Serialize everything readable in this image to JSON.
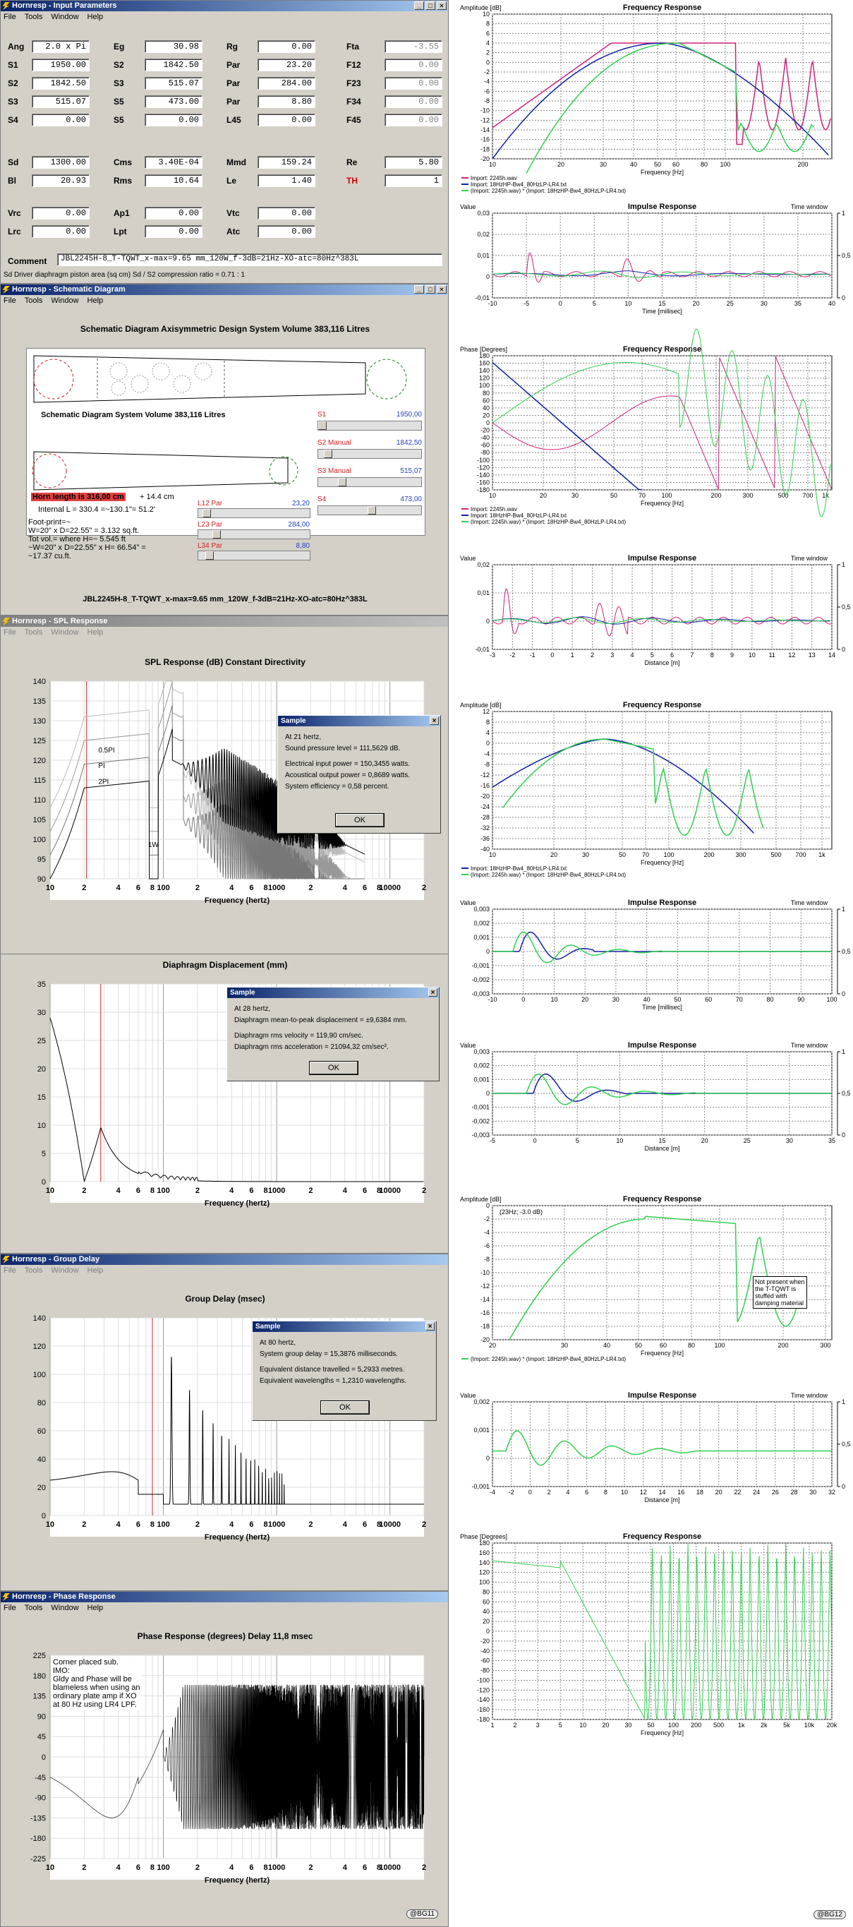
{
  "input_params": {
    "title": "Hornresp - Input Parameters",
    "menu": [
      "File",
      "Tools",
      "Window",
      "Help"
    ],
    "rows": [
      [
        {
          "l": "Ang",
          "v": "2.0 x Pi"
        },
        {
          "l": "Eg",
          "v": "30.98"
        },
        {
          "l": "Rg",
          "v": "0.00"
        },
        {
          "l": "Fta",
          "v": "-3.55",
          "dis": true
        }
      ],
      [
        {
          "l": "S1",
          "v": "1950.00"
        },
        {
          "l": "S2",
          "v": "1842.50"
        },
        {
          "l": "Par",
          "v": "23.20"
        },
        {
          "l": "F12",
          "v": "0.00",
          "dis": true
        }
      ],
      [
        {
          "l": "S2",
          "v": "1842.50"
        },
        {
          "l": "S3",
          "v": "515.07"
        },
        {
          "l": "Par",
          "v": "284.00"
        },
        {
          "l": "F23",
          "v": "0.00",
          "dis": true
        }
      ],
      [
        {
          "l": "S3",
          "v": "515.07"
        },
        {
          "l": "S5",
          "v": "473.00"
        },
        {
          "l": "Par",
          "v": "8.80"
        },
        {
          "l": "F34",
          "v": "0.00",
          "dis": true
        }
      ],
      [
        {
          "l": "S4",
          "v": "0.00"
        },
        {
          "l": "S5",
          "v": "0.00"
        },
        {
          "l": "L45",
          "v": "0.00"
        },
        {
          "l": "F45",
          "v": "0.00",
          "dis": true
        }
      ],
      [
        {
          "l": "Sd",
          "v": "1300.00"
        },
        {
          "l": "Cms",
          "v": "3.40E-04"
        },
        {
          "l": "Mmd",
          "v": "159.24"
        },
        {
          "l": "Re",
          "v": "5.80"
        }
      ],
      [
        {
          "l": "Bl",
          "v": "20.93"
        },
        {
          "l": "Rms",
          "v": "10.64"
        },
        {
          "l": "Le",
          "v": "1.40"
        },
        {
          "l": "TH",
          "v": "1",
          "red": true
        }
      ],
      [
        {
          "l": "Vrc",
          "v": "0.00"
        },
        {
          "l": "Ap1",
          "v": "0.00"
        },
        {
          "l": "Vtc",
          "v": "0.00"
        }
      ],
      [
        {
          "l": "Lrc",
          "v": "0.00"
        },
        {
          "l": "Lpt",
          "v": "0.00"
        },
        {
          "l": "Atc",
          "v": "0.00"
        }
      ]
    ],
    "comment_label": "Comment",
    "comment": "JBL2245H-8_T-TQWT_x-max=9.65 mm_120W_f-3dB=21Hz-XO-atc=80Hz^383L",
    "status": "Sd  Driver diaphragm piston area (sq cm)   Sd / S2 compression ratio = 0.71 : 1"
  },
  "schematic": {
    "title": "Hornresp - Schematic Diagram",
    "menu": [
      "File",
      "Tools",
      "Window",
      "Help"
    ],
    "heading": "Schematic Diagram   Axisymmetric Design   System Volume 383,116 Litres",
    "sub_heading": "Schematic Diagram   System Volume 383,116 Litres",
    "horn_length": "Horn length is 316,00 cm",
    "horn_extra": "+ 14.4 cm",
    "internal": "Internal L = 330.4 =~130.1\"= 51.2'",
    "notes": [
      "Foot-print=~",
      "W=20\" x D=22.55\" = 3.132 sq.ft.",
      "Tot vol.= where H=~ 5.545 ft",
      "~W=20\" x D=22.55\" x H= 66.54\" =",
      "~17.37 cu.ft."
    ],
    "sliders": [
      {
        "label": "S1",
        "mode": "",
        "value": "1950,00"
      },
      {
        "label": "S2",
        "mode": "Manual",
        "value": "1842,50"
      },
      {
        "label": "S3",
        "mode": "Manual",
        "value": "515,07"
      },
      {
        "label": "S4",
        "mode": "",
        "value": "473,00"
      }
    ],
    "lsliders": [
      {
        "label": "L12",
        "mode": "Par",
        "value": "23,20"
      },
      {
        "label": "L23",
        "mode": "Par",
        "value": "284,00"
      },
      {
        "label": "L34",
        "mode": "Par",
        "value": "8,80"
      }
    ],
    "footer": "JBL2245H-8_T-TQWT_x-max=9.65 mm_120W_f-3dB=21Hz-XO-atc=80Hz^383L"
  },
  "spl": {
    "title": "Hornresp - SPL Response",
    "menu": [
      "File",
      "Tools",
      "Window",
      "Help"
    ],
    "heading": "SPL Response (dB)   Constant Directivity",
    "xlabel": "Frequency (hertz)",
    "yticks": [
      "140",
      "135",
      "130",
      "125",
      "120",
      "115",
      "110",
      "105",
      "100",
      "95",
      "90"
    ],
    "xticks": [
      "10",
      "2",
      "4",
      "6",
      "8",
      "100",
      "2",
      "4",
      "6",
      "8",
      "1000",
      "2",
      "4",
      "6",
      "8",
      "10000",
      "2"
    ],
    "curve_labels": [
      "0.5PI",
      "PI",
      "2PI",
      "1W"
    ],
    "dialog": {
      "title": "Sample",
      "lines": [
        "At 21 hertz,",
        "Sound pressure level = 111,5629 dB.",
        "Electrical input power = 150,3455 watts.",
        "Acoustical output power = 0,8689 watts.",
        "System efficiency = 0,58 percent."
      ],
      "ok": "OK"
    }
  },
  "disp": {
    "heading": "Diaphragm Displacement (mm)",
    "xlabel": "Frequency (hertz)",
    "yticks": [
      "35",
      "30",
      "25",
      "20",
      "15",
      "10",
      "5",
      "0"
    ],
    "xticks": [
      "10",
      "2",
      "4",
      "6",
      "8",
      "100",
      "2",
      "4",
      "6",
      "8",
      "1000",
      "2",
      "4",
      "6",
      "8",
      "10000",
      "2"
    ],
    "dialog": {
      "title": "Sample",
      "lines": [
        "At 28 hertz,",
        "Diaphragm mean-to-peak displacement = ±9,6384 mm.",
        "Diaphragm rms velocity = 119,90 cm/sec.",
        "Diaphragm rms acceleration = 21094,32 cm/sec²."
      ],
      "ok": "OK"
    }
  },
  "gd": {
    "title": "Hornresp - Group Delay",
    "menu": [
      "File",
      "Tools",
      "Window",
      "Help"
    ],
    "heading": "Group Delay (msec)",
    "xlabel": "Frequency (hertz)",
    "yticks": [
      "140",
      "120",
      "100",
      "80",
      "60",
      "40",
      "20",
      "0"
    ],
    "xticks": [
      "10",
      "2",
      "4",
      "6",
      "8",
      "100",
      "2",
      "4",
      "6",
      "8",
      "1000",
      "2",
      "4",
      "6",
      "8",
      "10000",
      "2"
    ],
    "dialog": {
      "title": "Sample",
      "lines": [
        "At 80 hertz,",
        "System group delay = 15,3876 milliseconds.",
        "Equivalent distance travelled = 5,2933 metres.",
        "Equivalent wavelengths = 1,2310 wavelengths."
      ],
      "ok": "OK"
    }
  },
  "phase": {
    "title": "Hornresp - Phase Response",
    "menu": [
      "File",
      "Tools",
      "Window",
      "Help"
    ],
    "heading": "Phase Response (degrees)   Delay 11,8 msec",
    "xlabel": "Frequency (hertz)",
    "yticks": [
      "225",
      "180",
      "135",
      "90",
      "45",
      "0",
      "-45",
      "-90",
      "-135",
      "-180",
      "-225"
    ],
    "xticks": [
      "10",
      "2",
      "4",
      "6",
      "8",
      "100",
      "2",
      "4",
      "6",
      "8",
      "1000",
      "2",
      "4",
      "6",
      "8",
      "10000",
      "2"
    ],
    "note": [
      "Corner placed sub.",
      "IMO:",
      "Gldy and Phase will be",
      "blameless when using an",
      "ordinary plate amp if XO",
      "at 80 Hz using LR4 LPF."
    ],
    "badge": "@BG11"
  },
  "right": {
    "fr1": {
      "title": "Frequency Response",
      "ylabel": "Amplitude [dB]",
      "xlabel": "Frequency [Hz]",
      "yticks": [
        "10",
        "8",
        "6",
        "4",
        "2",
        "0",
        "-2",
        "-4",
        "-6",
        "-8",
        "-10",
        "-12",
        "-14",
        "-16",
        "-18",
        "-20"
      ],
      "xticks": [
        "10",
        "20",
        "30",
        "40",
        "50",
        "60",
        "80",
        "100",
        "200"
      ],
      "legend": [
        "Import: 2245h.wav",
        "Import: 18HzHP-Bw4_80HzLP-LR4.txt",
        "(Import: 2245h.wav) * (Import: 18HzHP-Bw4_80HzLP-LR4.txt)"
      ]
    },
    "ir1": {
      "title": "Impulse Response",
      "ylabel": "Value",
      "tw": "Time window",
      "xlabel": "Time [millisec]",
      "yticks": [
        "0,03",
        "0,02",
        "0,01",
        "0",
        "-0,01"
      ],
      "xticks": [
        "-10",
        "-5",
        "0",
        "5",
        "10",
        "15",
        "20",
        "25",
        "30",
        "35",
        "40"
      ],
      "rticks": [
        "1",
        "0,5",
        "0"
      ]
    },
    "ph1": {
      "title": "Frequency Response",
      "ylabel": "Phase [Degrees]",
      "xlabel": "Frequency [Hz]",
      "yticks": [
        "180",
        "160",
        "140",
        "120",
        "100",
        "80",
        "60",
        "40",
        "20",
        "0",
        "-20",
        "-40",
        "-60",
        "-80",
        "-100",
        "-120",
        "-140",
        "-160",
        "-180"
      ],
      "xticks": [
        "10",
        "20",
        "30",
        "50",
        "70",
        "100",
        "200",
        "300",
        "500",
        "700",
        "1k"
      ],
      "legend": [
        "Import: 2245h.wav",
        "Import: 18HzHP-Bw4_80HzLP-LR4.txt",
        "(Import: 2245h.wav) * (Import: 18HzHP-Bw4_80HzLP-LR4.txt)"
      ]
    },
    "ir2": {
      "title": "Impulse Response",
      "ylabel": "Value",
      "tw": "Time window",
      "xlabel": "Distance [m]",
      "yticks": [
        "0,02",
        "0,01",
        "0",
        "-0,01"
      ],
      "xticks": [
        "-3",
        "-2",
        "-1",
        "0",
        "1",
        "2",
        "3",
        "4",
        "5",
        "6",
        "7",
        "8",
        "9",
        "10",
        "11",
        "12",
        "13",
        "14"
      ],
      "rticks": [
        "1",
        "0,5",
        "0"
      ]
    },
    "fr2": {
      "title": "Frequency Response",
      "ylabel": "Amplitude [dB]",
      "xlabel": "Frequency [Hz]",
      "yticks": [
        "12",
        "8",
        "4",
        "0",
        "-4",
        "-8",
        "-12",
        "-16",
        "-20",
        "-24",
        "-28",
        "-32",
        "-36",
        "-40"
      ],
      "xticks": [
        "10",
        "20",
        "30",
        "50",
        "70",
        "100",
        "200",
        "300",
        "500",
        "700",
        "1k"
      ],
      "legend": [
        "Import: 18HzHP-Bw4_80HzLP-LR4.txt",
        "(Import: 2245h.wav) * (Import: 18HzHP-Bw4_80HzLP-LR4.txt)"
      ]
    },
    "ir3": {
      "title": "Impulse Response",
      "ylabel": "Value",
      "tw": "Time window",
      "xlabel": "Time [millisec]",
      "yticks": [
        "0,003",
        "0,002",
        "0,001",
        "0",
        "-0,001",
        "-0,002",
        "-0,003"
      ],
      "xticks": [
        "-10",
        "0",
        "10",
        "20",
        "30",
        "40",
        "50",
        "60",
        "70",
        "80",
        "90",
        "100"
      ],
      "rticks": [
        "1",
        "0,5",
        "0"
      ]
    },
    "ir4": {
      "title": "Impulse Response",
      "ylabel": "Value",
      "tw": "Time window",
      "xlabel": "Distance [m]",
      "yticks": [
        "0,003",
        "0,002",
        "0,001",
        "0",
        "-0,001",
        "-0,002",
        "-0,003"
      ],
      "xticks": [
        "-5",
        "0",
        "5",
        "10",
        "15",
        "20",
        "25",
        "30",
        "35"
      ],
      "rticks": [
        "1",
        "0,5",
        "0"
      ]
    },
    "fr3": {
      "title": "Frequency Response",
      "ylabel": "Amplitude [dB]",
      "xlabel": "Frequency [Hz]",
      "yticks": [
        "0",
        "-2",
        "-4",
        "-6",
        "-8",
        "-10",
        "-12",
        "-14",
        "-16",
        "-18",
        "-20"
      ],
      "xticks": [
        "20",
        "30",
        "40",
        "50",
        "60",
        "80",
        "100",
        "200",
        "300"
      ],
      "legend": [
        "(Import: 2245h.wav) * (Import: 18HzHP-Bw4_80HzLP-LR4.txt)"
      ],
      "marker": "(23Hz; -3.0 dB)",
      "note": [
        "Not present when",
        "the T-TQWT is",
        "stuffed with",
        "damping material"
      ]
    },
    "ir5": {
      "title": "Impulse Response",
      "ylabel": "Value",
      "tw": "Time window",
      "xlabel": "Distance [m]",
      "yticks": [
        "0,002",
        "0,001",
        "0",
        "-0,001"
      ],
      "xticks": [
        "-4",
        "-2",
        "0",
        "2",
        "4",
        "6",
        "8",
        "10",
        "12",
        "14",
        "16",
        "18",
        "20",
        "22",
        "24",
        "26",
        "28",
        "30",
        "32"
      ],
      "rticks": [
        "1",
        "0,5",
        "0"
      ]
    },
    "ph2": {
      "title": "Frequency Response",
      "ylabel": "Phase [Degrees]",
      "xlabel": "Frequency [Hz]",
      "yticks": [
        "180",
        "160",
        "140",
        "120",
        "100",
        "80",
        "60",
        "40",
        "20",
        "0",
        "-20",
        "-40",
        "-60",
        "-80",
        "-100",
        "-120",
        "-140",
        "-160",
        "-180"
      ],
      "xticks": [
        "1",
        "2",
        "3",
        "5",
        "10",
        "20",
        "30",
        "50",
        "100",
        "200",
        "500",
        "1k",
        "2k",
        "5k",
        "10k",
        "20k"
      ],
      "badge": "@BG12"
    }
  },
  "colors": {
    "pink": "#d0207a",
    "blue": "#1020a0",
    "green": "#30d050",
    "red": "#e02020",
    "gray": "#d4d0c8"
  }
}
